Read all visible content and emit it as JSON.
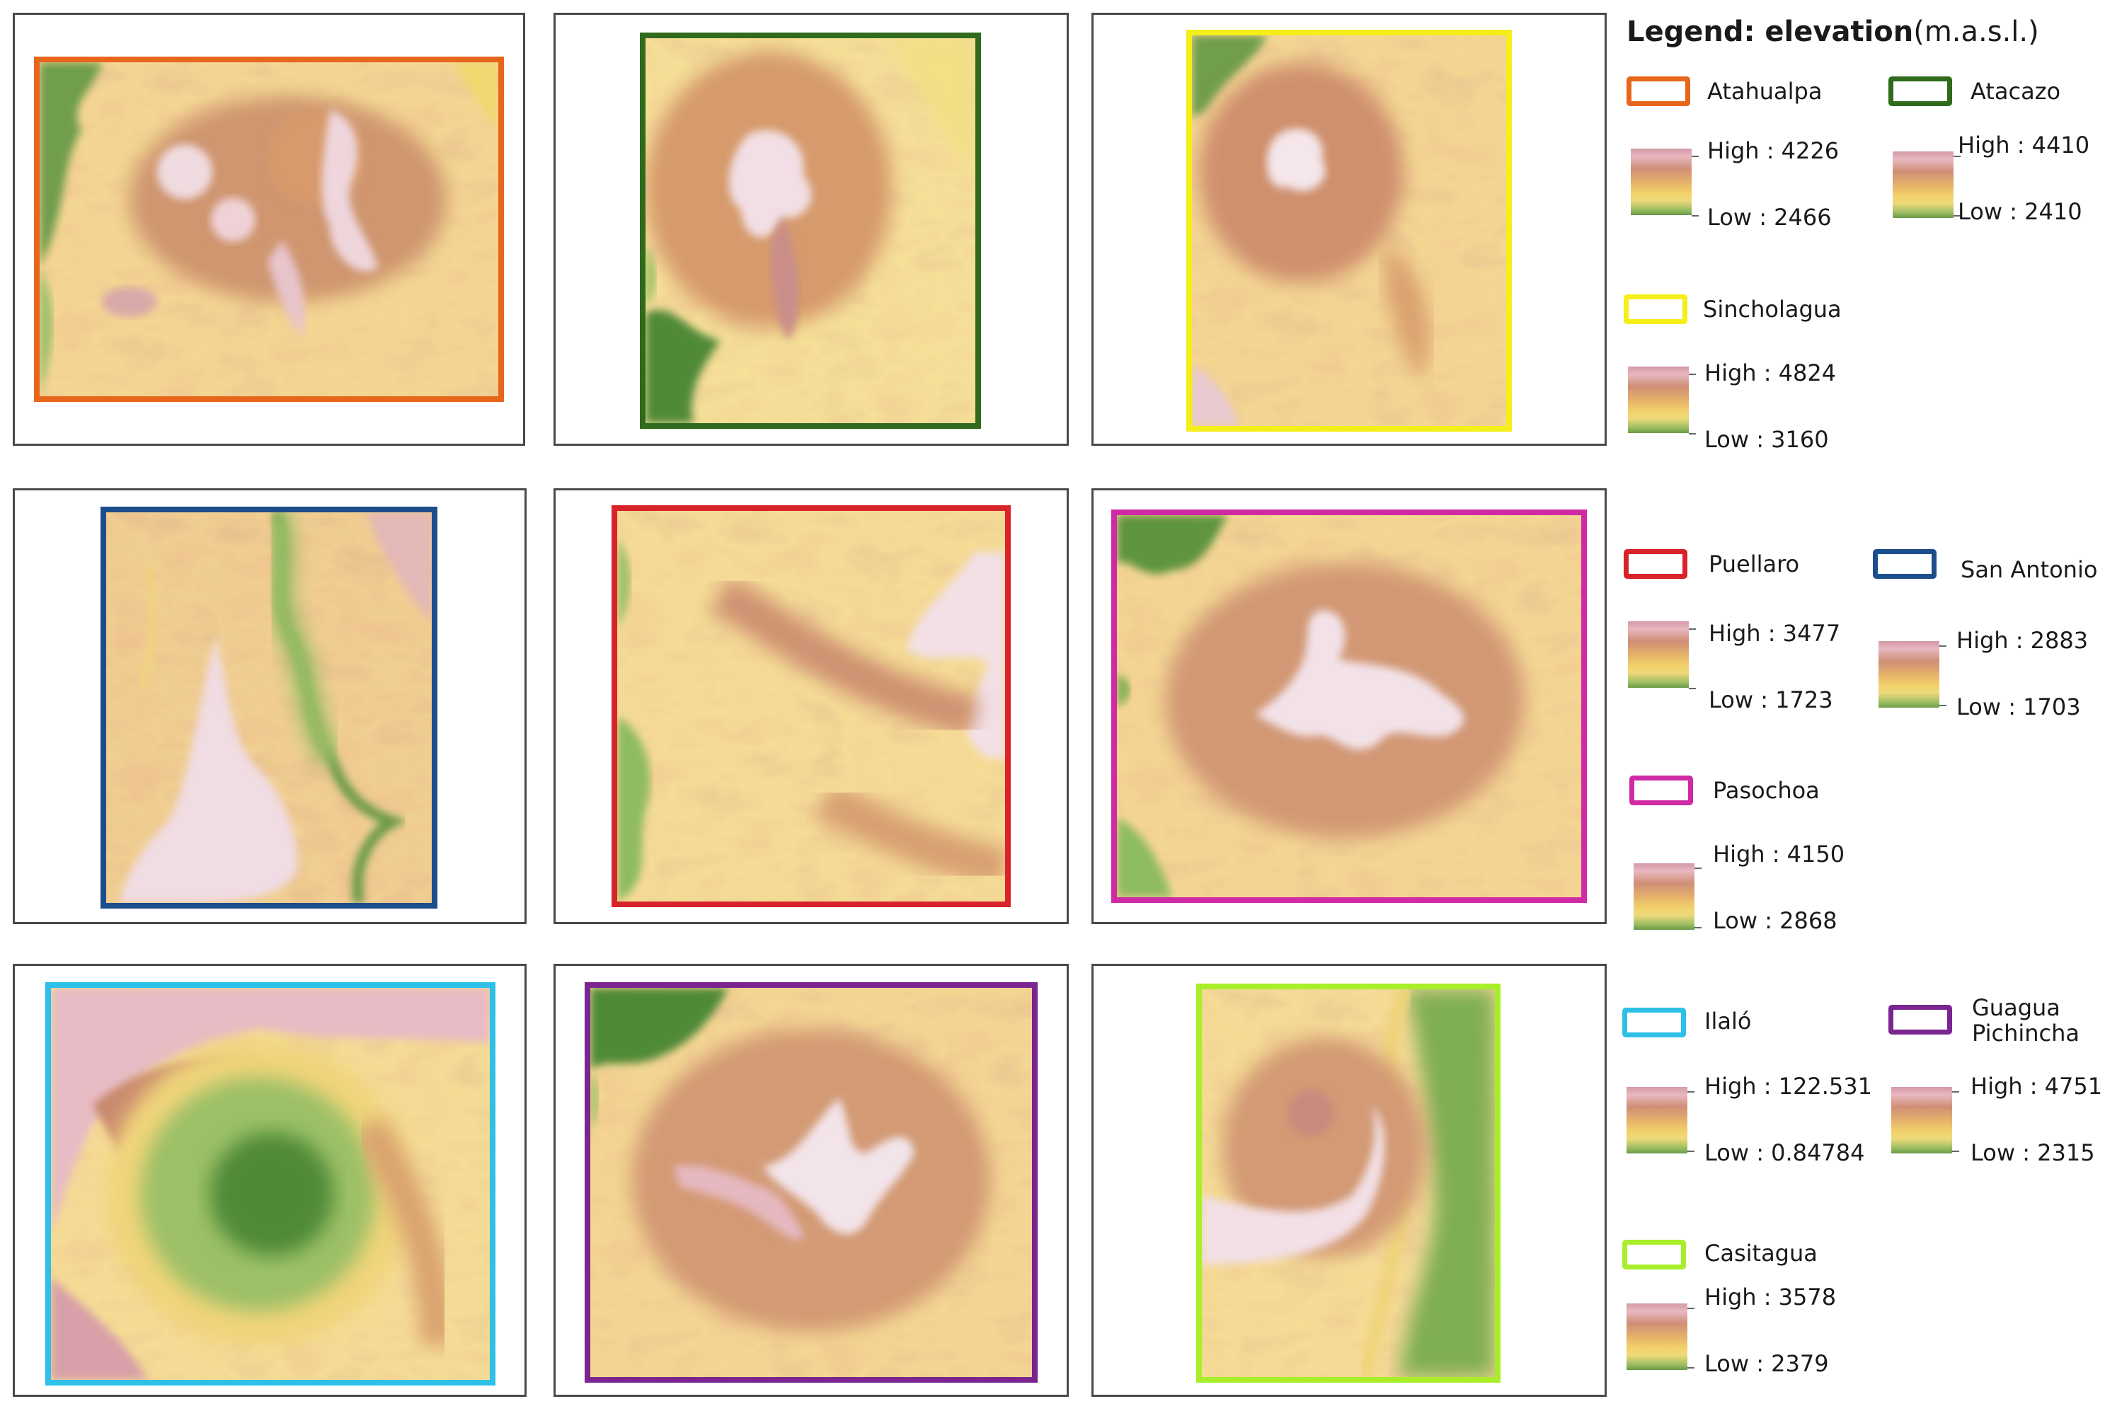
{
  "legend": {
    "title": "Legend: elevation",
    "unit": "(m.a.s.l.)",
    "high_prefix": "High : ",
    "low_prefix": "Low : "
  },
  "maps": [
    {
      "name": "Atahualpa",
      "color": "#e8661c",
      "high": "4226",
      "low": "2466"
    },
    {
      "name": "Atacazo",
      "color": "#2f6a1d",
      "high": "4410",
      "low": "2410"
    },
    {
      "name": "Sincholagua",
      "color": "#f4ee1a",
      "high": "4824",
      "low": "3160"
    },
    {
      "name": "Puellaro",
      "color": "#d8232a",
      "high": "3477",
      "low": "1723"
    },
    {
      "name": "San Antonio",
      "color": "#1d4e8c",
      "high": "2883",
      "low": "1703"
    },
    {
      "name": "Pasochoa",
      "color": "#d02aa4",
      "high": "4150",
      "low": "2868"
    },
    {
      "name": "Ilaló",
      "color": "#2ec0e6",
      "high": "122.531",
      "low": "0.84784"
    },
    {
      "name": "Guagua Pichincha",
      "color": "#7a2590",
      "high": "4751",
      "low": "2315"
    },
    {
      "name": "Casitagua",
      "color": "#a8ee2a",
      "high": "3578",
      "low": "2379"
    }
  ]
}
